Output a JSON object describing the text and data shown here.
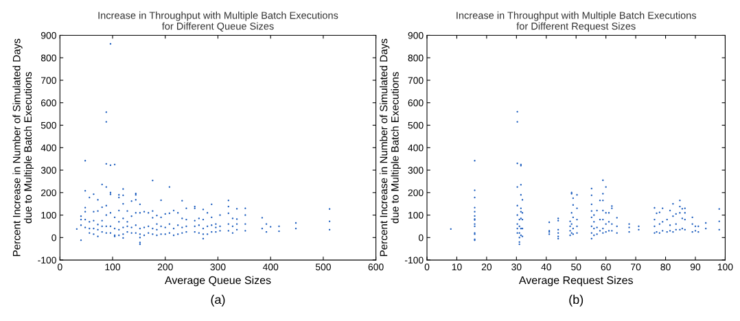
{
  "chart_data": [
    {
      "type": "scatter",
      "title": "Increase in Throughput with Multiple Batch Executions\nfor Different Queue Sizes",
      "xlabel": "Average Queue Sizes",
      "ylabel": "Percent Increase in Number of Simulated Days\ndue to Multiple Batch Executions",
      "annotations": [
        "(a)"
      ],
      "marker": "circle",
      "grid": false,
      "legend": false,
      "xlim": [
        0,
        600
      ],
      "xticks": [
        0,
        100,
        200,
        300,
        400,
        500,
        600
      ],
      "ylim": [
        -100,
        900
      ],
      "yticks": [
        -100,
        0,
        100,
        200,
        300,
        400,
        500,
        600,
        700,
        800,
        900
      ],
      "series": [
        {
          "color": "#1f5fbf",
          "x": [
            96,
            88,
            88,
            48,
            88,
            96,
            104,
            80,
            88,
            176,
            208,
            48,
            64,
            56,
            72,
            96,
            96,
            112,
            112,
            120,
            120,
            144,
            144,
            144,
            136,
            152,
            120,
            192,
            232,
            320,
            320,
            288,
            240,
            256,
            256,
            272,
            336,
            352,
            512,
            512,
            512,
            448,
            448,
            416,
            416,
            400,
            384,
            384,
            392,
            392,
            40,
            152,
            152,
            152,
            272,
            120,
            104,
            32,
            40,
            40,
            40,
            48,
            48,
            48,
            48,
            56,
            56,
            56,
            64,
            64,
            64,
            64,
            72,
            72,
            72,
            72,
            80,
            80,
            80,
            80,
            88,
            88,
            88,
            88,
            96,
            96,
            96,
            104,
            104,
            104,
            112,
            112,
            112,
            112,
            120,
            120,
            120,
            128,
            128,
            128,
            128,
            136,
            136,
            136,
            144,
            144,
            144,
            152,
            152,
            152,
            160,
            160,
            160,
            168,
            168,
            168,
            176,
            176,
            176,
            176,
            184,
            184,
            184,
            184,
            192,
            192,
            192,
            200,
            200,
            200,
            208,
            208,
            208,
            216,
            216,
            216,
            224,
            224,
            224,
            232,
            232,
            232,
            240,
            240,
            240,
            256,
            256,
            256,
            264,
            264,
            264,
            272,
            272,
            272,
            280,
            280,
            280,
            288,
            288,
            288,
            296,
            296,
            296,
            304,
            304,
            304,
            320,
            320,
            320,
            328,
            328,
            328,
            336,
            336,
            336,
            352,
            352,
            352
          ],
          "values": [
            862,
            558,
            515,
            342,
            328,
            322,
            325,
            236,
            225,
            254,
            225,
            208,
            193,
            178,
            168,
            200,
            192,
            190,
            178,
            216,
            188,
            196,
            190,
            168,
            162,
            148,
            150,
            166,
            164,
            165,
            138,
            148,
            130,
            138,
            130,
            125,
            128,
            130,
            127,
            72,
            35,
            65,
            40,
            50,
            28,
            48,
            88,
            40,
            60,
            25,
            -12,
            -30,
            -22,
            0,
            -5,
            -2,
            5,
            38,
            55,
            80,
            95,
            45,
            80,
            115,
            133,
            20,
            40,
            70,
            15,
            40,
            75,
            115,
            5,
            35,
            58,
            118,
            25,
            50,
            75,
            135,
            20,
            50,
            100,
            142,
            20,
            50,
            110,
            10,
            40,
            90,
            10,
            35,
            70,
            120,
            15,
            45,
            85,
            25,
            50,
            70,
            118,
            20,
            45,
            95,
            20,
            55,
            110,
            15,
            40,
            110,
            10,
            45,
            115,
            20,
            50,
            110,
            15,
            40,
            88,
            118,
            10,
            35,
            60,
            98,
            15,
            50,
            90,
            15,
            45,
            105,
            20,
            60,
            108,
            10,
            40,
            120,
            15,
            55,
            110,
            20,
            45,
            85,
            25,
            50,
            80,
            25,
            50,
            75,
            20,
            55,
            85,
            15,
            40,
            80,
            15,
            50,
            110,
            25,
            55,
            90,
            25,
            45,
            60,
            30,
            50,
            100,
            30,
            60,
            108,
            20,
            50,
            85,
            35,
            60,
            82,
            30,
            60,
            100
          ]
        }
      ]
    },
    {
      "type": "scatter",
      "title": "Increase in Throughput with Multiple Batch Executions\nfor Different Request Sizes",
      "xlabel": "Average Request Sizes",
      "ylabel": "Percent Increase in Number of Simulated Days\ndue to Multiple Batch Executions",
      "annotations": [
        "(b)"
      ],
      "marker": "circle",
      "grid": false,
      "legend": false,
      "xlim": [
        0,
        100
      ],
      "xticks": [
        0,
        10,
        20,
        30,
        40,
        50,
        60,
        70,
        80,
        90,
        100
      ],
      "ylim": [
        -100,
        900
      ],
      "yticks": [
        -100,
        0,
        100,
        200,
        300,
        400,
        500,
        600,
        700,
        800,
        900
      ],
      "series": [
        {
          "color": "#1f5fbf",
          "x": [
            8,
            16,
            16,
            16,
            16,
            16,
            16,
            16,
            16,
            16,
            16,
            16,
            16,
            16,
            16,
            30.3,
            30.3,
            30.3,
            30.3,
            30.3,
            30.3,
            30.3,
            30.3,
            30.3,
            31,
            31,
            31,
            31,
            31,
            31,
            31.5,
            31.5,
            31.5,
            31.5,
            31.5,
            31.5,
            31.5,
            31.5,
            31.5,
            32,
            32,
            32,
            32,
            32,
            41,
            41,
            41,
            41,
            44,
            44,
            44,
            44,
            44,
            44,
            48,
            48,
            48,
            48,
            48.5,
            48.5,
            48.5,
            48.5,
            48.5,
            49,
            49,
            49,
            49,
            49,
            50.3,
            50.3,
            50.3,
            50.3,
            50.3,
            55.2,
            55.2,
            55.2,
            55.2,
            55.2,
            55.2,
            55.2,
            55.2,
            56,
            56,
            56,
            56,
            57,
            57,
            57,
            58,
            58,
            58,
            59,
            59,
            59,
            59,
            59,
            59,
            59,
            60,
            60,
            60,
            60,
            61,
            61,
            61,
            62,
            62,
            62,
            62,
            63.7,
            63.7,
            63.7,
            67.8,
            67.8,
            67.8,
            71,
            71,
            76.3,
            76.3,
            76.3,
            76.3,
            77,
            77,
            78,
            78,
            78,
            79,
            79,
            79,
            80.5,
            80.5,
            81.5,
            81.5,
            81.5,
            82.5,
            82.5,
            82.5,
            83.5,
            83.5,
            83.5,
            84.8,
            84.8,
            84.8,
            84.8,
            85.6,
            85.6,
            85.6,
            86.5,
            86.5,
            86.5,
            86.5,
            89,
            89,
            89,
            90,
            90,
            91,
            91,
            93.5,
            93.5,
            98,
            98,
            98
          ],
          "values": [
            38,
            -12,
            -8,
            15,
            20,
            50,
            60,
            78,
            82,
            96,
            115,
            133,
            178,
            210,
            342,
            560,
            515,
            330,
            225,
            142,
            100,
            60,
            40,
            20,
            -30,
            -20,
            0,
            20,
            50,
            80,
            325,
            320,
            235,
            190,
            130,
            115,
            85,
            40,
            10,
            168,
            110,
            80,
            40,
            5,
            15,
            25,
            30,
            68,
            -5,
            5,
            20,
            35,
            75,
            85,
            10,
            30,
            50,
            72,
            200,
            195,
            110,
            60,
            20,
            175,
            145,
            90,
            40,
            15,
            190,
            130,
            80,
            50,
            20,
            -5,
            20,
            50,
            90,
            118,
            148,
            188,
            218,
            10,
            40,
            70,
            100,
            15,
            45,
            120,
            165,
            80,
            30,
            255,
            195,
            165,
            120,
            80,
            40,
            20,
            225,
            110,
            60,
            25,
            110,
            70,
            30,
            140,
            130,
            60,
            30,
            20,
            50,
            88,
            25,
            45,
            60,
            35,
            50,
            20,
            50,
            80,
            132,
            25,
            108,
            20,
            60,
            112,
            30,
            70,
            130,
            25,
            80,
            120,
            55,
            30,
            150,
            95,
            25,
            105,
            60,
            35,
            165,
            138,
            110,
            35,
            128,
            85,
            40,
            130,
            110,
            80,
            35,
            90,
            60,
            25,
            50,
            30,
            50,
            25,
            65,
            40,
            127,
            72,
            35
          ]
        }
      ]
    }
  ]
}
